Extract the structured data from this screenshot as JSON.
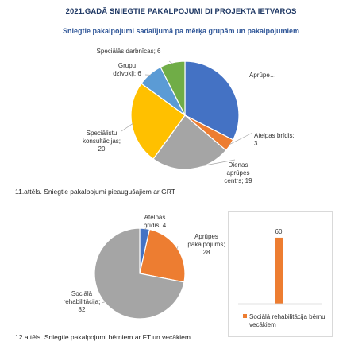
{
  "page_title": "2021.GADĀ SNIEGTIE PAKALPOJUMI DI PROJEKTA IETVAROS",
  "chart_data": [
    {
      "type": "pie",
      "title": "Sniegtie pakalpojumi sadalījumā pa mērķa grupām un pakalpojumiem",
      "caption": "11.attēls. Sniegtie pakalpojumi pieaugušajiem ar GRT",
      "slices": [
        {
          "label_lines": [
            "Aprūpe…"
          ],
          "value": 26,
          "color": "#4472c4"
        },
        {
          "label_lines": [
            "Atelpas brīdis;",
            "3"
          ],
          "value": 3,
          "color": "#ed7d31"
        },
        {
          "label_lines": [
            "Dienas",
            "aprūpes",
            "centrs; 19"
          ],
          "value": 19,
          "color": "#a5a5a5"
        },
        {
          "label_lines": [
            "Speciālistu",
            "konsultācijas;",
            "20"
          ],
          "value": 20,
          "color": "#ffc000"
        },
        {
          "label_lines": [
            "Grupu",
            "dzīvokļi; 6"
          ],
          "value": 6,
          "color": "#5b9bd5"
        },
        {
          "label_lines": [
            "Speciālās darbnīcas; 6"
          ],
          "value": 6,
          "color": "#70ad47"
        }
      ]
    },
    {
      "type": "pie",
      "caption": "12.attēls. Sniegtie pakalpojumi bērniem ar FT un vecākiem",
      "slices": [
        {
          "label_lines": [
            "Atelpas",
            "brīdis; 4"
          ],
          "value": 4,
          "color": "#4472c4"
        },
        {
          "label_lines": [
            "Aprūpes",
            "pakalpojums;",
            "28"
          ],
          "value": 28,
          "color": "#ed7d31"
        },
        {
          "label_lines": [
            "Sociālā",
            "rehabilitācija;",
            "82"
          ],
          "value": 82,
          "color": "#a5a5a5"
        }
      ]
    },
    {
      "type": "bar",
      "categories": [
        ""
      ],
      "series": [
        {
          "name": "Sociālā rehabilitācija bērnu vecākiem",
          "values": [
            60
          ],
          "color": "#ed7d31"
        }
      ],
      "data_labels": [
        "60"
      ],
      "legend_lines": [
        "Sociālā rehabilitācija bērnu",
        "vecākiem"
      ],
      "ylim": [
        0,
        65
      ]
    }
  ]
}
